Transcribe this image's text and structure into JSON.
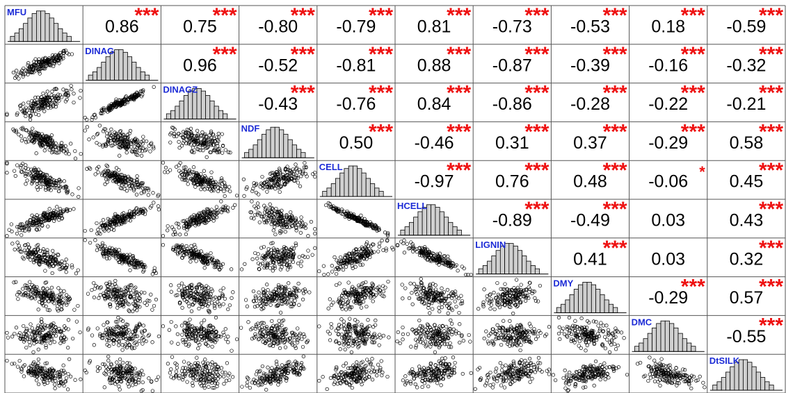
{
  "chart_data": {
    "type": "scatter",
    "subtype": "correlation-matrix",
    "title": "",
    "variables": [
      "MFU",
      "DINAG",
      "DINAGZ",
      "NDF",
      "CELL",
      "HCELL",
      "LIGNIN",
      "DMY",
      "DMC",
      "DtSILK"
    ],
    "correlations": [
      [
        null,
        0.86,
        0.75,
        -0.8,
        -0.79,
        0.81,
        -0.73,
        -0.53,
        0.18,
        -0.59
      ],
      [
        null,
        null,
        0.96,
        -0.52,
        -0.81,
        0.88,
        -0.87,
        -0.39,
        -0.16,
        -0.32
      ],
      [
        null,
        null,
        null,
        -0.43,
        -0.76,
        0.84,
        -0.86,
        -0.28,
        -0.22,
        -0.21
      ],
      [
        null,
        null,
        null,
        null,
        0.5,
        -0.46,
        0.31,
        0.37,
        -0.29,
        0.58
      ],
      [
        null,
        null,
        null,
        null,
        null,
        -0.97,
        0.76,
        0.48,
        -0.06,
        0.45
      ],
      [
        null,
        null,
        null,
        null,
        null,
        null,
        -0.89,
        -0.49,
        0.03,
        0.43
      ],
      [
        null,
        null,
        null,
        null,
        null,
        null,
        null,
        0.41,
        0.03,
        0.32
      ],
      [
        null,
        null,
        null,
        null,
        null,
        null,
        null,
        null,
        -0.29,
        0.57
      ],
      [
        null,
        null,
        null,
        null,
        null,
        null,
        null,
        null,
        null,
        -0.55
      ],
      [
        null,
        null,
        null,
        null,
        null,
        null,
        null,
        null,
        null,
        null
      ]
    ],
    "correlation_labels": [
      [
        null,
        "0.86",
        "0.75",
        "-0.80",
        "-0.79",
        "0.81",
        "-0.73",
        "-0.53",
        "0.18",
        "-0.59"
      ],
      [
        null,
        null,
        "0.96",
        "-0.52",
        "-0.81",
        "0.88",
        "-0.87",
        "-0.39",
        "-0.16",
        "-0.32"
      ],
      [
        null,
        null,
        null,
        "-0.43",
        "-0.76",
        "0.84",
        "-0.86",
        "-0.28",
        "-0.22",
        "-0.21"
      ],
      [
        null,
        null,
        null,
        null,
        "0.50",
        "-0.46",
        "0.31",
        "0.37",
        "-0.29",
        "0.58"
      ],
      [
        null,
        null,
        null,
        null,
        null,
        "-0.97",
        "0.76",
        "0.48",
        "-0.06",
        "0.45"
      ],
      [
        null,
        null,
        null,
        null,
        null,
        null,
        "-0.89",
        "-0.49",
        "0.03",
        "0.43"
      ],
      [
        null,
        null,
        null,
        null,
        null,
        null,
        null,
        "0.41",
        "0.03",
        "0.32"
      ],
      [
        null,
        null,
        null,
        null,
        null,
        null,
        null,
        null,
        "-0.29",
        "0.57"
      ],
      [
        null,
        null,
        null,
        null,
        null,
        null,
        null,
        null,
        null,
        "-0.55"
      ],
      [
        null,
        null,
        null,
        null,
        null,
        null,
        null,
        null,
        null,
        null
      ]
    ],
    "significance": [
      [
        null,
        "***",
        "***",
        "***",
        "***",
        "***",
        "***",
        "***",
        "***",
        "***"
      ],
      [
        null,
        null,
        "***",
        "***",
        "***",
        "***",
        "***",
        "***",
        "***",
        "***"
      ],
      [
        null,
        null,
        null,
        "***",
        "***",
        "***",
        "***",
        "***",
        "***",
        "***"
      ],
      [
        null,
        null,
        null,
        null,
        "***",
        "***",
        "***",
        "***",
        "***",
        "***"
      ],
      [
        null,
        null,
        null,
        null,
        null,
        "***",
        "***",
        "***",
        "*",
        "***"
      ],
      [
        null,
        null,
        null,
        null,
        null,
        null,
        "***",
        "***",
        "",
        "***"
      ],
      [
        null,
        null,
        null,
        null,
        null,
        null,
        null,
        "***",
        "",
        "***"
      ],
      [
        null,
        null,
        null,
        null,
        null,
        null,
        null,
        null,
        "***",
        "***"
      ],
      [
        null,
        null,
        null,
        null,
        null,
        null,
        null,
        null,
        null,
        "***"
      ],
      [
        null,
        null,
        null,
        null,
        null,
        null,
        null,
        null,
        null,
        null
      ]
    ],
    "colors": {
      "variable_label": "#1c2bd6",
      "significance": "#ee1111",
      "histogram_fill": "#d0d0d0",
      "ink": "#000000",
      "grid": "#555555"
    }
  }
}
